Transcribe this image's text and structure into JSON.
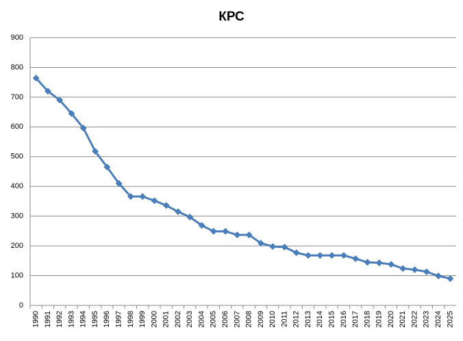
{
  "chart_data": {
    "type": "line",
    "title": "КРС",
    "categories": [
      "1990",
      "1991",
      "1992",
      "1993",
      "1994",
      "1995",
      "1996",
      "1997",
      "1998",
      "1999",
      "2000",
      "2001",
      "2002",
      "2003",
      "2004",
      "2005",
      "2006",
      "2007",
      "2008",
      "2009",
      "2010",
      "2011",
      "2012",
      "2013",
      "2014",
      "2015",
      "2016",
      "2017",
      "2018",
      "2019",
      "2020",
      "2021",
      "2022",
      "2023",
      "2024",
      "2025"
    ],
    "values": [
      764,
      720,
      690,
      645,
      596,
      518,
      465,
      410,
      366,
      366,
      352,
      336,
      315,
      297,
      269,
      249,
      249,
      237,
      237,
      209,
      198,
      196,
      177,
      168,
      168,
      168,
      168,
      157,
      145,
      143,
      138,
      124,
      120,
      113,
      99,
      90
    ],
    "color": "#4a7ebb",
    "ylim": [
      0,
      900
    ],
    "yticks": [
      0,
      100,
      200,
      300,
      400,
      500,
      600,
      700,
      800,
      900
    ],
    "grid": true
  }
}
